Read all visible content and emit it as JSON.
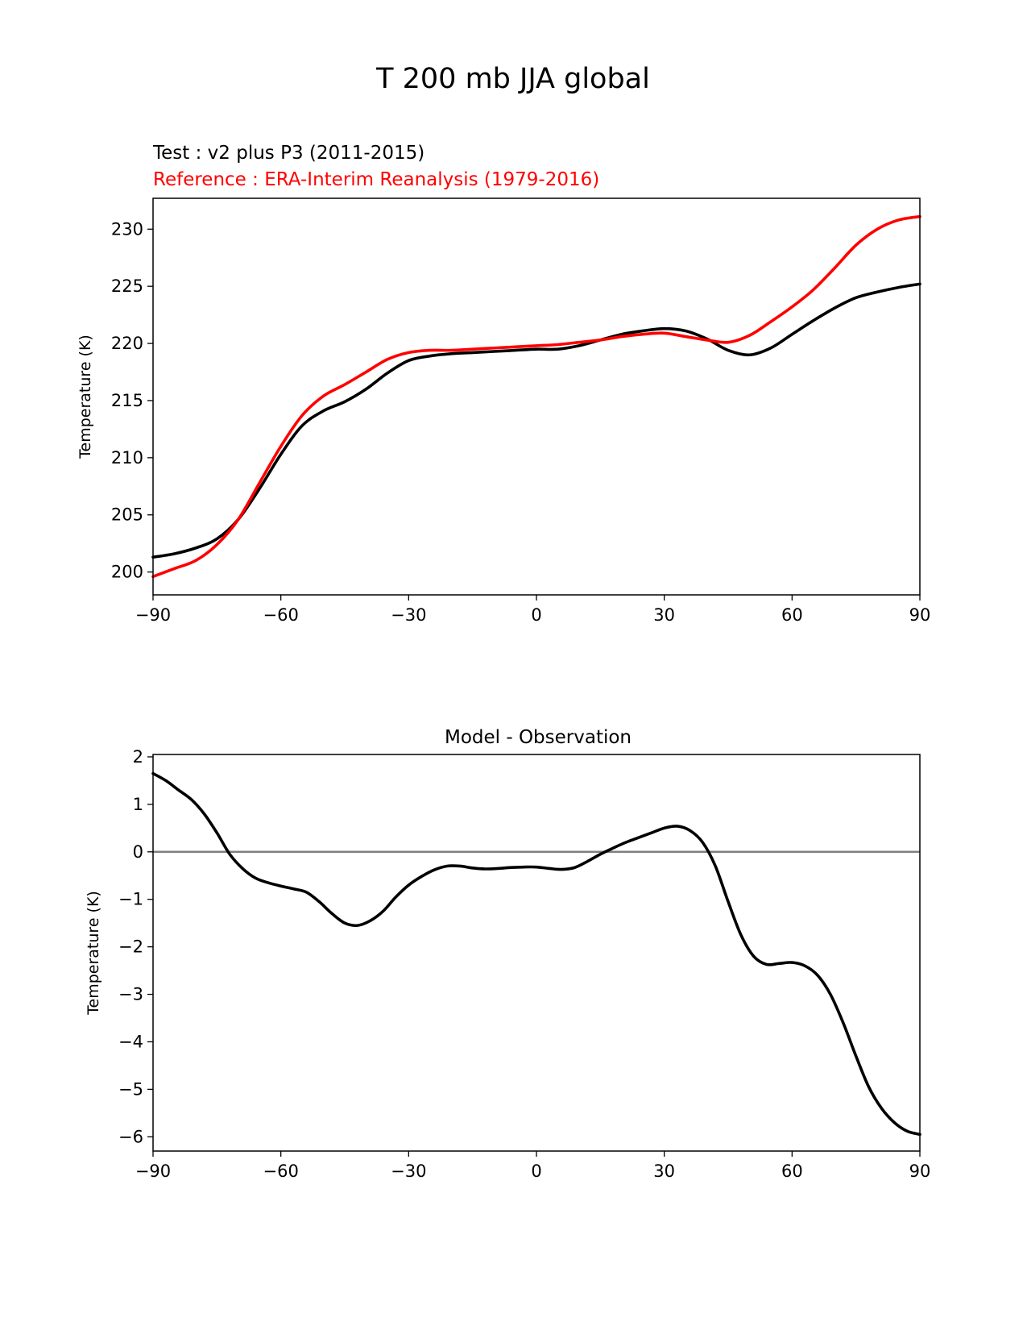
{
  "figure_title": "T 200 mb JJA global",
  "colors": {
    "test": "#000000",
    "reference": "#ff0000",
    "zero_line": "#808080"
  },
  "chart_data": [
    {
      "type": "line",
      "title": "",
      "test_label": "Test : v2 plus P3 (2011-2015)",
      "reference_label": "Reference : ERA-Interim Reanalysis (1979-2016)",
      "xlabel": "",
      "ylabel": "Temperature (K)",
      "xlim": [
        -90,
        90
      ],
      "ylim": [
        198,
        232.7
      ],
      "xticks": [
        -90,
        -60,
        -30,
        0,
        30,
        60,
        90
      ],
      "xtick_labels": [
        "−90",
        "−60",
        "−30",
        "0",
        "30",
        "60",
        "90"
      ],
      "yticks": [
        200,
        205,
        210,
        215,
        220,
        225,
        230
      ],
      "ytick_labels": [
        "200",
        "205",
        "210",
        "215",
        "220",
        "225",
        "230"
      ],
      "series": [
        {
          "name": "Test",
          "x": [
            -90,
            -85,
            -80,
            -75,
            -70,
            -65,
            -60,
            -55,
            -50,
            -45,
            -40,
            -35,
            -30,
            -25,
            -20,
            -15,
            -10,
            -5,
            0,
            5,
            10,
            15,
            20,
            25,
            30,
            35,
            40,
            45,
            50,
            55,
            60,
            65,
            70,
            75,
            80,
            85,
            90
          ],
          "values": [
            201.3,
            201.6,
            202.1,
            202.9,
            204.6,
            207.3,
            210.3,
            212.8,
            214.1,
            214.9,
            216.0,
            217.4,
            218.5,
            218.9,
            219.1,
            219.2,
            219.3,
            219.4,
            219.5,
            219.5,
            219.8,
            220.3,
            220.8,
            221.1,
            221.3,
            221.1,
            220.4,
            219.4,
            219.0,
            219.6,
            220.8,
            222.0,
            223.1,
            224.0,
            224.5,
            224.9,
            225.2
          ]
        },
        {
          "name": "Reference",
          "x": [
            -90,
            -85,
            -80,
            -75,
            -70,
            -65,
            -60,
            -55,
            -50,
            -45,
            -40,
            -35,
            -30,
            -25,
            -20,
            -15,
            -10,
            -5,
            0,
            5,
            10,
            15,
            20,
            25,
            30,
            35,
            40,
            45,
            50,
            55,
            60,
            65,
            70,
            75,
            80,
            85,
            90
          ],
          "values": [
            199.6,
            200.3,
            201.0,
            202.4,
            204.6,
            207.8,
            211.0,
            213.7,
            215.4,
            216.4,
            217.5,
            218.6,
            219.2,
            219.4,
            219.4,
            219.5,
            219.6,
            219.7,
            219.8,
            219.9,
            220.1,
            220.3,
            220.6,
            220.8,
            220.9,
            220.6,
            220.3,
            220.1,
            220.7,
            221.9,
            223.2,
            224.7,
            226.6,
            228.6,
            230.0,
            230.8,
            231.1
          ]
        }
      ]
    },
    {
      "type": "line",
      "title": "Model - Observation",
      "xlabel": "",
      "ylabel": "Temperature (K)",
      "xlim": [
        -90,
        90
      ],
      "ylim": [
        -6.3,
        2.05
      ],
      "xticks": [
        -90,
        -60,
        -30,
        0,
        30,
        60,
        90
      ],
      "xtick_labels": [
        "−90",
        "−60",
        "−30",
        "0",
        "30",
        "60",
        "90"
      ],
      "yticks": [
        2,
        1,
        0,
        -1,
        -2,
        -3,
        -4,
        -5,
        -6
      ],
      "ytick_labels": [
        "2",
        "1",
        "0",
        "−1",
        "−2",
        "−3",
        "−4",
        "−5",
        "−6"
      ],
      "zero_line": 0,
      "series": [
        {
          "name": "Model - Observation",
          "x": [
            -90,
            -87,
            -84,
            -81,
            -78,
            -75,
            -72,
            -69,
            -66,
            -63,
            -60,
            -57,
            -54,
            -51,
            -48,
            -45,
            -42,
            -39,
            -36,
            -33,
            -30,
            -27,
            -24,
            -21,
            -18,
            -15,
            -12,
            -9,
            -6,
            -3,
            0,
            3,
            6,
            9,
            12,
            15,
            18,
            21,
            24,
            27,
            30,
            33,
            36,
            39,
            42,
            45,
            48,
            51,
            54,
            57,
            60,
            63,
            66,
            69,
            72,
            75,
            78,
            81,
            84,
            87,
            90
          ],
          "values": [
            1.65,
            1.5,
            1.3,
            1.1,
            0.8,
            0.4,
            -0.05,
            -0.35,
            -0.55,
            -0.65,
            -0.72,
            -0.78,
            -0.85,
            -1.05,
            -1.3,
            -1.5,
            -1.55,
            -1.45,
            -1.25,
            -0.95,
            -0.7,
            -0.52,
            -0.38,
            -0.3,
            -0.3,
            -0.34,
            -0.36,
            -0.35,
            -0.33,
            -0.32,
            -0.32,
            -0.35,
            -0.37,
            -0.33,
            -0.2,
            -0.05,
            0.08,
            0.2,
            0.3,
            0.4,
            0.5,
            0.54,
            0.45,
            0.2,
            -0.3,
            -1.05,
            -1.75,
            -2.2,
            -2.37,
            -2.35,
            -2.33,
            -2.4,
            -2.6,
            -3.0,
            -3.6,
            -4.3,
            -4.95,
            -5.4,
            -5.7,
            -5.88,
            -5.95
          ]
        }
      ]
    }
  ]
}
